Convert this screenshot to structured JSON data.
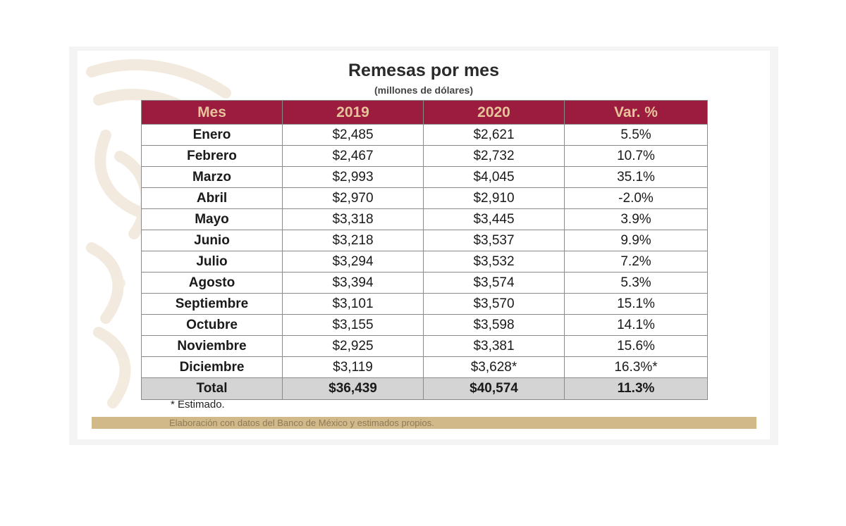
{
  "title": "Remesas por mes",
  "subtitle": "(millones de dólares)",
  "table": {
    "headers": [
      "Mes",
      "2019",
      "2020",
      "Var. %"
    ],
    "rows": [
      [
        "Enero",
        "$2,485",
        "$2,621",
        "5.5%"
      ],
      [
        "Febrero",
        "$2,467",
        "$2,732",
        "10.7%"
      ],
      [
        "Marzo",
        "$2,993",
        "$4,045",
        "35.1%"
      ],
      [
        "Abril",
        "$2,970",
        "$2,910",
        "-2.0%"
      ],
      [
        "Mayo",
        "$3,318",
        "$3,445",
        "3.9%"
      ],
      [
        "Junio",
        "$3,218",
        "$3,537",
        "9.9%"
      ],
      [
        "Julio",
        "$3,294",
        "$3,532",
        "7.2%"
      ],
      [
        "Agosto",
        "$3,394",
        "$3,574",
        "5.3%"
      ],
      [
        "Septiembre",
        "$3,101",
        "$3,570",
        "15.1%"
      ],
      [
        "Octubre",
        "$3,155",
        "$3,598",
        "14.1%"
      ],
      [
        "Noviembre",
        "$2,925",
        "$3,381",
        "15.6%"
      ],
      [
        "Diciembre",
        "$3,119",
        "$3,628*",
        "16.3%*"
      ]
    ],
    "total": [
      "Total",
      "$36,439",
      "$40,574",
      "11.3%"
    ]
  },
  "footnote": "* Estimado.",
  "source": "Elaboración con datos del Banco de México y estimados propios.",
  "colors": {
    "header_bg": "#9b1c3e",
    "header_text": "#e6c39a",
    "total_bg": "#d4d4d4",
    "source_bar": "#d2b98a"
  },
  "watermark_icon": "decorative-ornament-icon"
}
